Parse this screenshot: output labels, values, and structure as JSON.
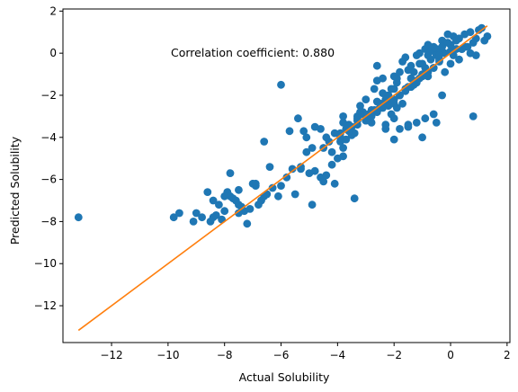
{
  "chart_data": {
    "type": "scatter",
    "title": "",
    "xlabel": "Actual Solubility",
    "ylabel": "Predicted Solubility",
    "xlim": [
      -13.72,
      2.1
    ],
    "ylim": [
      -13.75,
      2.1
    ],
    "xticks": [
      -12,
      -10,
      -8,
      -6,
      -4,
      -2,
      0,
      2
    ],
    "yticks": [
      -12,
      -10,
      -8,
      -6,
      -4,
      -2,
      0,
      2
    ],
    "annotation": "Correlation coefficient: 0.880",
    "grid": false,
    "colors": {
      "points": "#1f77b4",
      "fit_line": "#ff7f0e"
    },
    "fit_line": {
      "x": [
        -13.17,
        1.3
      ],
      "y": [
        -13.17,
        1.3
      ]
    },
    "series": [
      {
        "x": [
          -13.17,
          -9.8,
          -9.6,
          -9.1,
          -8.8,
          -8.6,
          -8.5,
          -8.4,
          -8.3,
          -8.2,
          -8.1,
          -8.0,
          -7.9,
          -7.8,
          -7.7,
          -7.6,
          -7.5,
          -7.4,
          -7.3,
          -7.2,
          -7.1,
          -7.0,
          -7.8,
          -7.5,
          -6.9,
          -6.8,
          -6.7,
          -6.6,
          -6.5,
          -6.0,
          -5.8,
          -5.6,
          -5.5,
          -5.3,
          -5.1,
          -4.9,
          -4.8,
          -4.6,
          -4.5,
          -4.4,
          -4.2,
          -4.0,
          -3.8,
          -3.7,
          -3.5,
          -3.3,
          -3.1,
          -2.9,
          -2.7,
          -2.5,
          -6.0,
          -6.1,
          -6.6,
          -5.7,
          -5.4,
          -5.2,
          -5.1,
          -5.0,
          -4.9,
          -4.6,
          -4.5,
          -4.2,
          -4.1,
          -3.9,
          -3.8,
          -3.6,
          -3.4,
          -3.3,
          -3.2,
          -3.1,
          -3.0,
          -2.9,
          -2.8,
          -2.7,
          -2.6,
          -2.5,
          -2.4,
          -2.3,
          -2.2,
          -2.1,
          -2.0,
          -1.9,
          -1.8,
          -1.7,
          -1.6,
          -1.5,
          -1.4,
          -1.3,
          -1.2,
          -1.1,
          -1.0,
          -0.9,
          -0.8,
          -0.7,
          -0.6,
          -0.5,
          -0.4,
          -0.3,
          -0.2,
          -0.1,
          0.0,
          0.1,
          0.2,
          0.3,
          0.4,
          0.5,
          0.6,
          0.7,
          0.8,
          0.9,
          1.0,
          1.1,
          1.3,
          -2.4,
          -2.2,
          -2.0,
          -1.8,
          -1.6,
          -1.4,
          -1.2,
          -1.0,
          -0.8,
          -0.6,
          -0.4,
          -0.2,
          0.0,
          0.2,
          -3.5,
          -3.3,
          -3.0,
          -2.8,
          -2.6,
          -2.4,
          -2.2,
          -2.0,
          -1.8,
          -1.6,
          -1.4,
          -1.2,
          -1.0,
          -0.8,
          -0.6,
          -0.4,
          -2.3,
          -2.1,
          -1.9,
          -1.7,
          -1.5,
          -1.3,
          -1.1,
          -0.9,
          -0.7,
          -0.5,
          -0.3,
          -0.1,
          0.1,
          0.3,
          0.5,
          0.7,
          -2.0,
          -1.8,
          -1.5,
          -1.2,
          -0.9,
          -0.6,
          -0.3,
          0.0,
          -3.8,
          -3.6,
          -3.4,
          -3.2,
          -3.0,
          -2.8,
          -2.6,
          -2.4,
          -2.2,
          -2.0,
          -4.1,
          -3.9,
          -3.7,
          -2.6,
          -2.4,
          -1.9,
          -1.4,
          -0.8,
          -0.2,
          0.4,
          0.9,
          0.8,
          -0.5,
          -1.0,
          -1.5,
          -2.0,
          -2.6,
          -3.2,
          -3.8,
          -4.3,
          -4.8,
          -5.3,
          -6.3,
          -6.9,
          -7.5,
          -8.0,
          -8.4,
          -9.0,
          -6.4,
          -4.4,
          -3.9,
          -3.6,
          -3.3,
          -2.8,
          -2.3,
          -1.1,
          -0.4,
          1.2
        ],
        "y": [
          -7.8,
          -7.8,
          -7.6,
          -8.0,
          -7.8,
          -6.6,
          -8.0,
          -7.8,
          -7.7,
          -7.2,
          -7.9,
          -7.5,
          -6.6,
          -6.8,
          -6.9,
          -7.0,
          -7.2,
          -7.3,
          -7.5,
          -8.1,
          -7.4,
          -6.2,
          -5.7,
          -7.6,
          -6.3,
          -7.2,
          -7.0,
          -6.8,
          -6.7,
          -6.3,
          -5.9,
          -5.5,
          -6.7,
          -5.5,
          -4.7,
          -4.5,
          -5.6,
          -5.9,
          -6.1,
          -5.8,
          -5.3,
          -5.0,
          -4.5,
          -4.1,
          -3.9,
          -3.4,
          -2.9,
          -3.1,
          -2.7,
          -2.4,
          -1.5,
          -6.8,
          -4.2,
          -3.7,
          -3.1,
          -3.7,
          -4.0,
          -5.7,
          -7.2,
          -3.6,
          -4.5,
          -4.7,
          -6.2,
          -3.8,
          -4.9,
          -3.5,
          -6.9,
          -3.0,
          -2.5,
          -2.8,
          -2.2,
          -2.9,
          -3.3,
          -1.7,
          -1.3,
          -2.6,
          -2.4,
          -3.6,
          -2.2,
          -1.7,
          -1.1,
          -1.2,
          -0.9,
          -0.4,
          -0.2,
          -0.8,
          -0.6,
          -0.9,
          -0.1,
          0.0,
          -0.5,
          0.2,
          0.4,
          0.1,
          0.3,
          0.2,
          0.0,
          0.6,
          0.5,
          0.9,
          0.1,
          0.8,
          0.6,
          0.7,
          0.2,
          0.9,
          0.3,
          1.0,
          0.5,
          0.7,
          1.1,
          1.2,
          0.8,
          -1.9,
          -2.1,
          -2.4,
          -2.0,
          -1.7,
          -1.6,
          -1.3,
          -1.0,
          -1.1,
          -0.7,
          -0.3,
          0.0,
          0.4,
          0.2,
          -3.5,
          -3.2,
          -3.2,
          -2.9,
          -2.8,
          -2.6,
          -2.5,
          -2.2,
          -2.0,
          -1.8,
          -1.6,
          -1.4,
          -1.1,
          -0.9,
          -0.7,
          -0.4,
          -3.4,
          -2.9,
          -2.6,
          -2.4,
          -1.6,
          -1.5,
          -1.2,
          -0.7,
          -0.3,
          -0.1,
          0.3,
          0.5,
          -0.1,
          -0.3,
          0.3,
          0.0,
          -4.1,
          -3.6,
          -3.4,
          -3.3,
          -3.1,
          -2.9,
          -2.0,
          -0.5,
          -3.0,
          -3.4,
          -3.8,
          -2.8,
          -3.2,
          -3.0,
          -2.7,
          -2.5,
          -2.0,
          -1.7,
          -3.8,
          -4.2,
          -3.6,
          -0.6,
          -1.2,
          -1.4,
          -1.2,
          -0.1,
          -0.9,
          0.2,
          -0.1,
          -3.0,
          -3.3,
          -4.0,
          -3.5,
          -3.1,
          -2.3,
          -2.9,
          -3.3,
          -4.2,
          -3.5,
          -5.4,
          -6.4,
          -6.2,
          -6.5,
          -6.8,
          -7.0,
          -7.6,
          -5.4,
          -4.0,
          -4.0,
          -3.7,
          -3.1,
          -2.7,
          -2.2,
          -0.5,
          -0.1,
          0.6
        ]
      }
    ]
  }
}
